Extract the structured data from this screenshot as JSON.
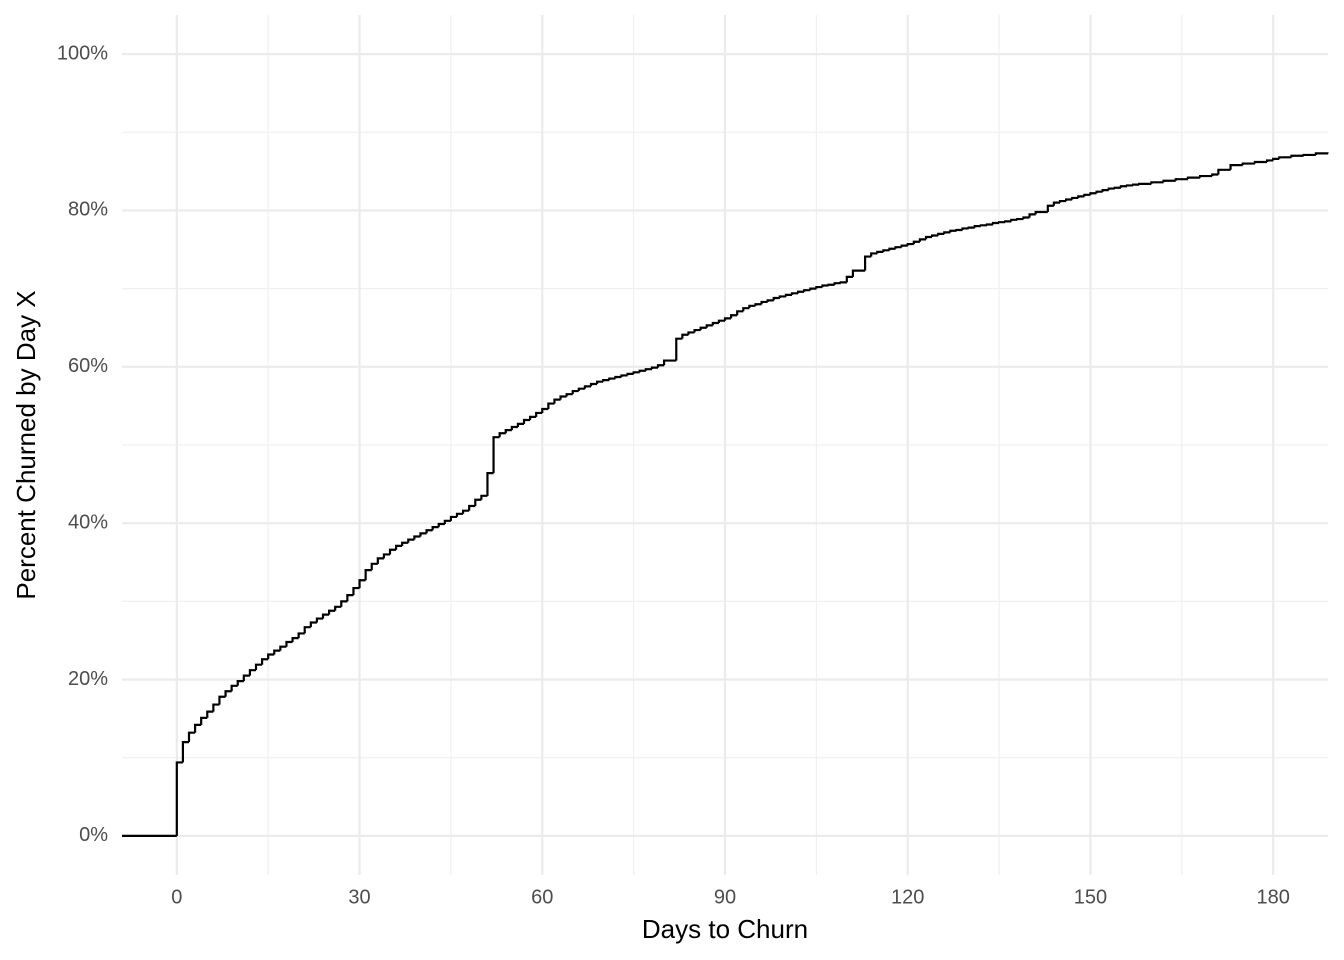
{
  "chart_data": {
    "type": "step",
    "x_label": "Days to Churn",
    "y_label": "Percent Churned by Day X",
    "xlim": [
      -9,
      189
    ],
    "ylim": [
      -5,
      105
    ],
    "xticks": [
      0,
      30,
      60,
      90,
      120,
      150,
      180
    ],
    "xminor": [
      15,
      45,
      75,
      105,
      135,
      165
    ],
    "yticks": [
      {
        "value": 0,
        "label": "0%"
      },
      {
        "value": 20,
        "label": "20%"
      },
      {
        "value": 40,
        "label": "40%"
      },
      {
        "value": 60,
        "label": "60%"
      },
      {
        "value": 80,
        "label": "80%"
      },
      {
        "value": 100,
        "label": "100%"
      }
    ],
    "yminor": [
      10,
      30,
      50,
      70,
      90
    ],
    "grid": true,
    "color": "#000000",
    "x": [
      -9,
      0,
      1,
      2,
      3,
      4,
      5,
      6,
      7,
      8,
      9,
      10,
      11,
      12,
      13,
      14,
      15,
      16,
      17,
      18,
      19,
      20,
      21,
      22,
      23,
      24,
      25,
      26,
      27,
      28,
      29,
      30,
      31,
      32,
      33,
      34,
      35,
      36,
      37,
      38,
      39,
      40,
      41,
      42,
      43,
      44,
      45,
      46,
      47,
      48,
      49,
      50,
      51,
      52,
      53,
      54,
      55,
      56,
      57,
      58,
      59,
      60,
      61,
      62,
      63,
      64,
      65,
      66,
      67,
      68,
      69,
      70,
      71,
      72,
      73,
      74,
      75,
      76,
      77,
      78,
      79,
      80,
      82,
      83,
      84,
      85,
      86,
      87,
      88,
      89,
      90,
      91,
      92,
      93,
      94,
      95,
      96,
      97,
      98,
      99,
      100,
      101,
      102,
      103,
      104,
      105,
      106,
      107,
      108,
      109,
      110,
      111,
      113,
      114,
      115,
      116,
      117,
      118,
      119,
      120,
      121,
      122,
      123,
      124,
      125,
      126,
      127,
      128,
      129,
      130,
      131,
      132,
      133,
      134,
      135,
      136,
      137,
      138,
      139,
      140,
      141,
      143,
      144,
      145,
      146,
      147,
      148,
      149,
      150,
      151,
      152,
      153,
      154,
      155,
      156,
      157,
      158,
      160,
      162,
      164,
      166,
      168,
      170,
      171,
      173,
      175,
      177,
      179,
      180,
      181,
      183,
      185,
      187,
      189
    ],
    "values": [
      0,
      9.4,
      12.0,
      13.2,
      14.2,
      15.1,
      15.9,
      16.8,
      17.8,
      18.5,
      19.2,
      19.8,
      20.5,
      21.2,
      21.9,
      22.6,
      23.2,
      23.7,
      24.2,
      24.8,
      25.3,
      25.9,
      26.7,
      27.3,
      27.8,
      28.3,
      28.8,
      29.3,
      30.0,
      30.8,
      31.7,
      32.7,
      34.0,
      34.8,
      35.5,
      36.0,
      36.6,
      37.1,
      37.5,
      37.9,
      38.3,
      38.7,
      39.1,
      39.5,
      39.9,
      40.3,
      40.8,
      41.2,
      41.6,
      42.2,
      43.0,
      43.5,
      46.4,
      51.0,
      51.5,
      51.9,
      52.3,
      52.7,
      53.2,
      53.6,
      54.1,
      54.6,
      55.3,
      55.8,
      56.2,
      56.5,
      56.9,
      57.2,
      57.5,
      57.8,
      58.1,
      58.3,
      58.5,
      58.7,
      58.9,
      59.1,
      59.3,
      59.5,
      59.7,
      59.9,
      60.2,
      60.8,
      63.6,
      64.1,
      64.4,
      64.7,
      65.0,
      65.3,
      65.6,
      65.9,
      66.2,
      66.6,
      67.1,
      67.5,
      67.8,
      68.0,
      68.3,
      68.5,
      68.8,
      69.0,
      69.2,
      69.4,
      69.6,
      69.8,
      70.0,
      70.2,
      70.4,
      70.5,
      70.7,
      70.8,
      71.5,
      72.3,
      74.1,
      74.5,
      74.7,
      74.9,
      75.1,
      75.3,
      75.5,
      75.7,
      76.0,
      76.3,
      76.6,
      76.8,
      77.0,
      77.2,
      77.4,
      77.5,
      77.7,
      77.8,
      78.0,
      78.1,
      78.2,
      78.4,
      78.5,
      78.6,
      78.8,
      78.9,
      79.1,
      79.5,
      79.8,
      80.6,
      81.0,
      81.2,
      81.4,
      81.6,
      81.8,
      82.0,
      82.2,
      82.4,
      82.6,
      82.8,
      82.9,
      83.1,
      83.2,
      83.3,
      83.4,
      83.6,
      83.8,
      84.0,
      84.2,
      84.4,
      84.6,
      85.2,
      85.8,
      86.0,
      86.2,
      86.4,
      86.6,
      86.8,
      87.0,
      87.1,
      87.3,
      87.4
    ]
  }
}
